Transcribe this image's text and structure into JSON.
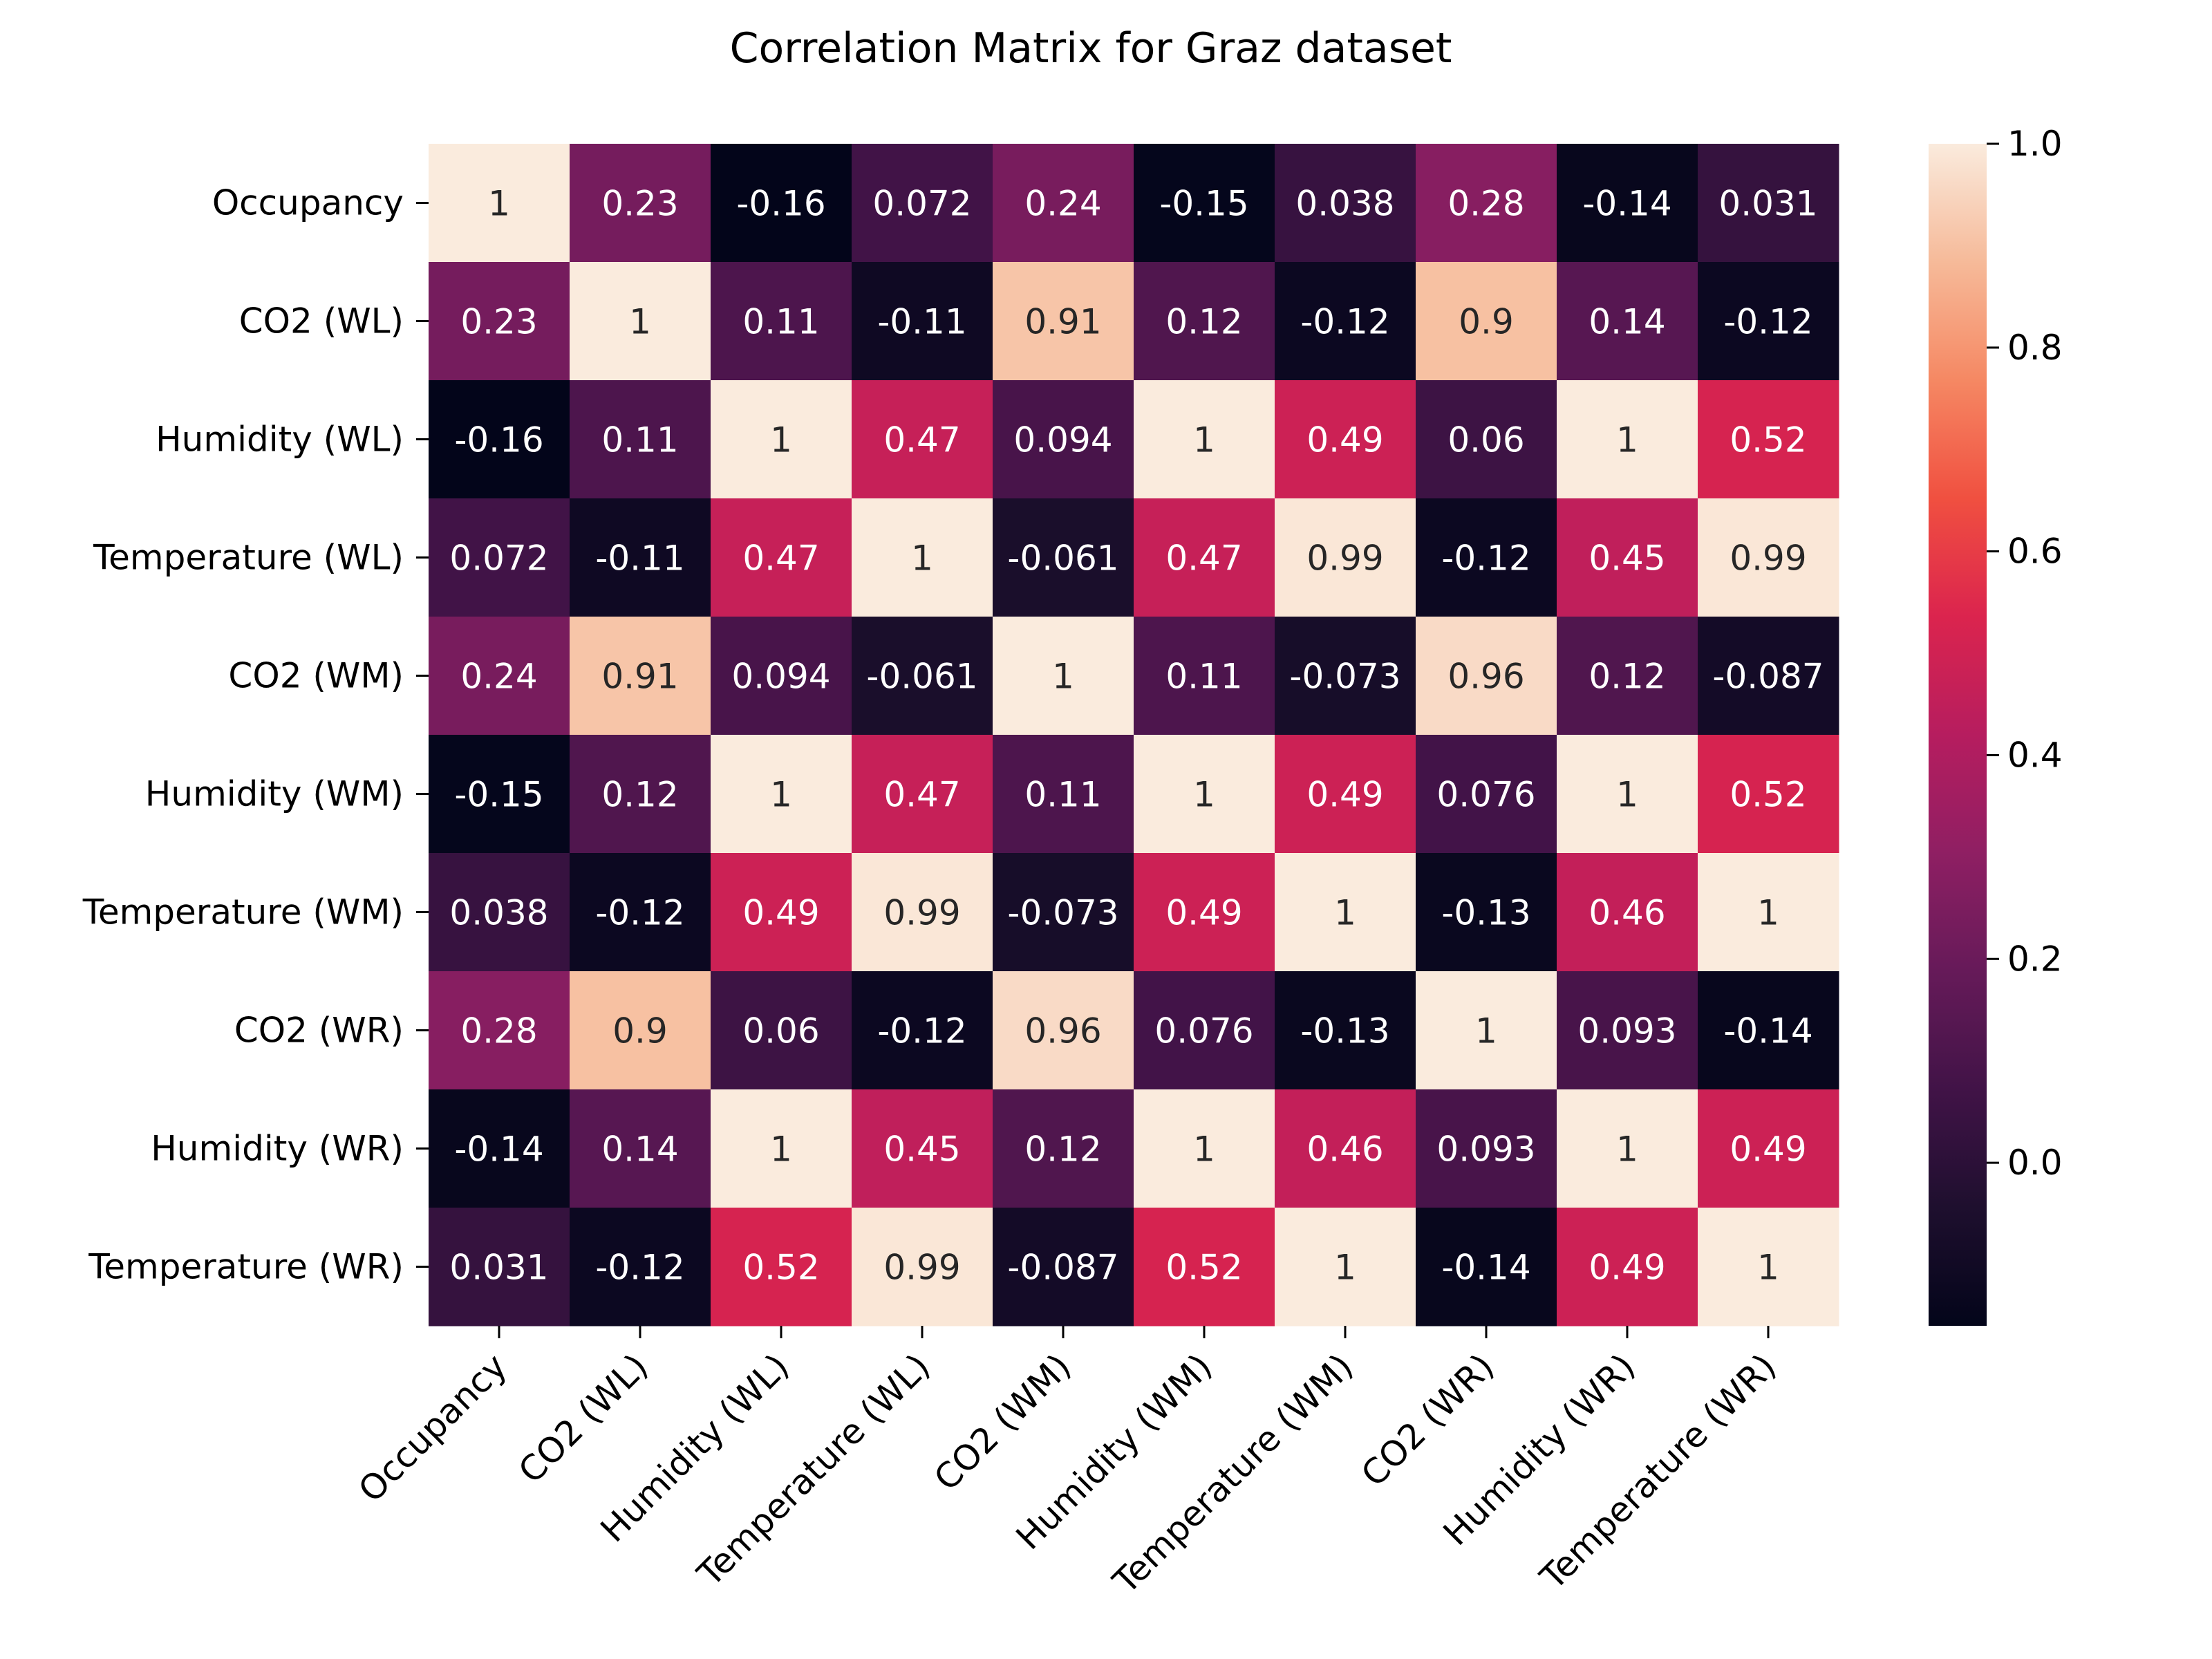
{
  "chart_data": {
    "type": "heatmap",
    "title": "Correlation Matrix for Graz dataset",
    "labels": [
      "Occupancy",
      "CO2 (WL)",
      "Humidity (WL)",
      "Temperature (WL)",
      "CO2 (WM)",
      "Humidity (WM)",
      "Temperature (WM)",
      "CO2 (WR)",
      "Humidity (WR)",
      "Temperature (WR)"
    ],
    "matrix": [
      [
        1,
        0.23,
        -0.16,
        0.072,
        0.24,
        -0.15,
        0.038,
        0.28,
        -0.14,
        0.031
      ],
      [
        0.23,
        1,
        0.11,
        -0.11,
        0.91,
        0.12,
        -0.12,
        0.9,
        0.14,
        -0.12
      ],
      [
        -0.16,
        0.11,
        1,
        0.47,
        0.094,
        1,
        0.49,
        0.06,
        1,
        0.52
      ],
      [
        0.072,
        -0.11,
        0.47,
        1,
        -0.061,
        0.47,
        0.99,
        -0.12,
        0.45,
        0.99
      ],
      [
        0.24,
        0.91,
        0.094,
        -0.061,
        1,
        0.11,
        -0.073,
        0.96,
        0.12,
        -0.087
      ],
      [
        -0.15,
        0.12,
        1,
        0.47,
        0.11,
        1,
        0.49,
        0.076,
        1,
        0.52
      ],
      [
        0.038,
        -0.12,
        0.49,
        0.99,
        -0.073,
        0.49,
        1,
        -0.13,
        0.46,
        1
      ],
      [
        0.28,
        0.9,
        0.06,
        -0.12,
        0.96,
        0.076,
        -0.13,
        1,
        0.093,
        -0.14
      ],
      [
        -0.14,
        0.14,
        1,
        0.45,
        0.12,
        1,
        0.46,
        0.093,
        1,
        0.49
      ],
      [
        0.031,
        -0.12,
        0.52,
        0.99,
        -0.087,
        0.52,
        1,
        -0.14,
        0.49,
        1
      ]
    ],
    "colorbar": {
      "colormap": "rocket",
      "range": [
        -0.16,
        1.0
      ],
      "ticks": [
        0.0,
        0.2,
        0.4,
        0.6,
        0.8,
        1.0
      ],
      "tick_labels": [
        "0.0",
        "0.2",
        "0.4",
        "0.6",
        "0.8",
        "1.0"
      ]
    },
    "annotations": true,
    "legend": "none"
  }
}
